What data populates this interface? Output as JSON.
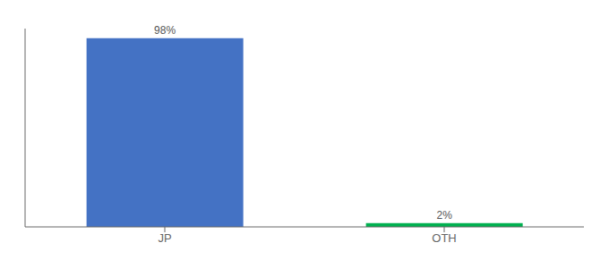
{
  "chart_data": {
    "type": "bar",
    "categories": [
      "JP",
      "OTH"
    ],
    "values": [
      98,
      2
    ],
    "value_labels": [
      "98%",
      "2%"
    ],
    "colors": [
      "#4472C4",
      "#00B050"
    ],
    "ylim": [
      0,
      103
    ],
    "data_labels": true,
    "tick_labels": "x"
  }
}
